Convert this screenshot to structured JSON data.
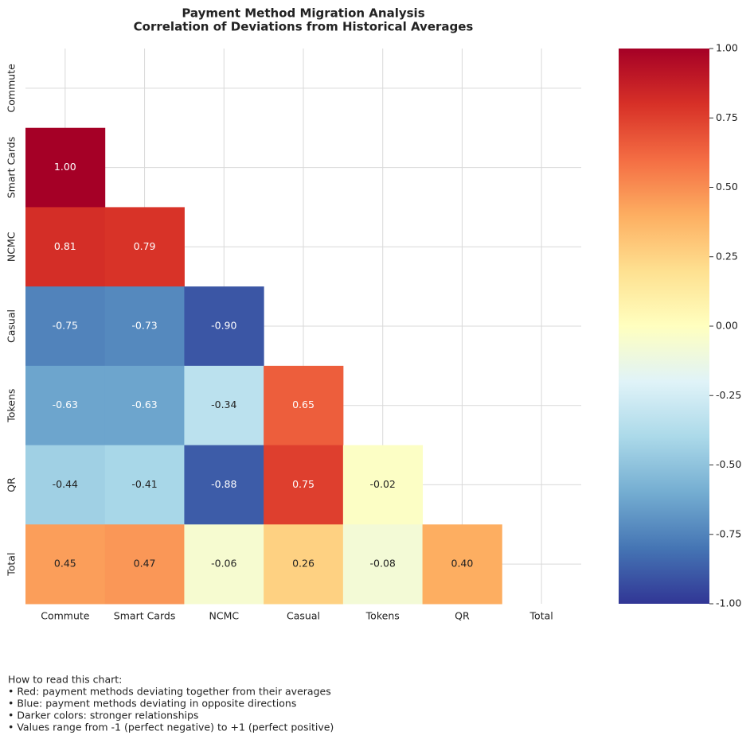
{
  "chart_data": {
    "type": "heatmap",
    "title": "Payment Method Migration Analysis",
    "subtitle": "Correlation of Deviations from Historical Averages",
    "x_categories": [
      "Commute",
      "Smart Cards",
      "NCMC",
      "Casual",
      "Tokens",
      "QR",
      "Total"
    ],
    "y_categories": [
      "Commute",
      "Smart Cards",
      "NCMC",
      "Casual",
      "Tokens",
      "QR",
      "Total"
    ],
    "values": [
      [
        null,
        null,
        null,
        null,
        null,
        null,
        null
      ],
      [
        1,
        null,
        null,
        null,
        null,
        null,
        null
      ],
      [
        0.81,
        0.79,
        null,
        null,
        null,
        null,
        null
      ],
      [
        -0.75,
        -0.73,
        -0.9,
        null,
        null,
        null,
        null
      ],
      [
        -0.63,
        -0.63,
        -0.34,
        0.65,
        null,
        null,
        null
      ],
      [
        -0.44,
        -0.41,
        -0.88,
        0.75,
        -0.02,
        null,
        null
      ],
      [
        0.45,
        0.47,
        -0.06,
        0.26,
        -0.08,
        0.4,
        null
      ]
    ],
    "value_labels": [
      [
        null,
        null,
        null,
        null,
        null,
        null,
        null
      ],
      [
        "1.00",
        null,
        null,
        null,
        null,
        null,
        null
      ],
      [
        "0.81",
        "0.79",
        null,
        null,
        null,
        null,
        null
      ],
      [
        "-0.75",
        "-0.73",
        "-0.90",
        null,
        null,
        null,
        null
      ],
      [
        "-0.63",
        "-0.63",
        "-0.34",
        "0.65",
        null,
        null,
        null
      ],
      [
        "-0.44",
        "-0.41",
        "-0.88",
        "0.75",
        "-0.02",
        null,
        null
      ],
      [
        "0.45",
        "0.47",
        "-0.06",
        "0.26",
        "-0.08",
        "0.40",
        null
      ]
    ],
    "zlim": [
      -1,
      1
    ],
    "zticks": [
      {
        "value": 1,
        "label": "1.00"
      },
      0.75,
      {
        "value": 0.5,
        "label": "0.50"
      },
      0.25,
      {
        "value": 0,
        "label": "0.00"
      },
      -0.25,
      {
        "value": -0.5,
        "label": "-0.50"
      },
      -0.75,
      {
        "value": -1,
        "label": "-1.00"
      }
    ],
    "colormap": [
      "#313695",
      "#4575b4",
      "#74add1",
      "#abd9e9",
      "#e0f3f8",
      "#ffffbf",
      "#fee090",
      "#fdae61",
      "#f46d43",
      "#d73027",
      "#a50026"
    ],
    "grid": true,
    "annotation": [
      "How to read this chart:",
      "• Red: payment methods deviating together from their averages",
      "• Blue: payment methods deviating in opposite directions",
      "• Darker colors: stronger relationships",
      "• Values range from -1 (perfect negative) to +1 (perfect positive)"
    ]
  }
}
